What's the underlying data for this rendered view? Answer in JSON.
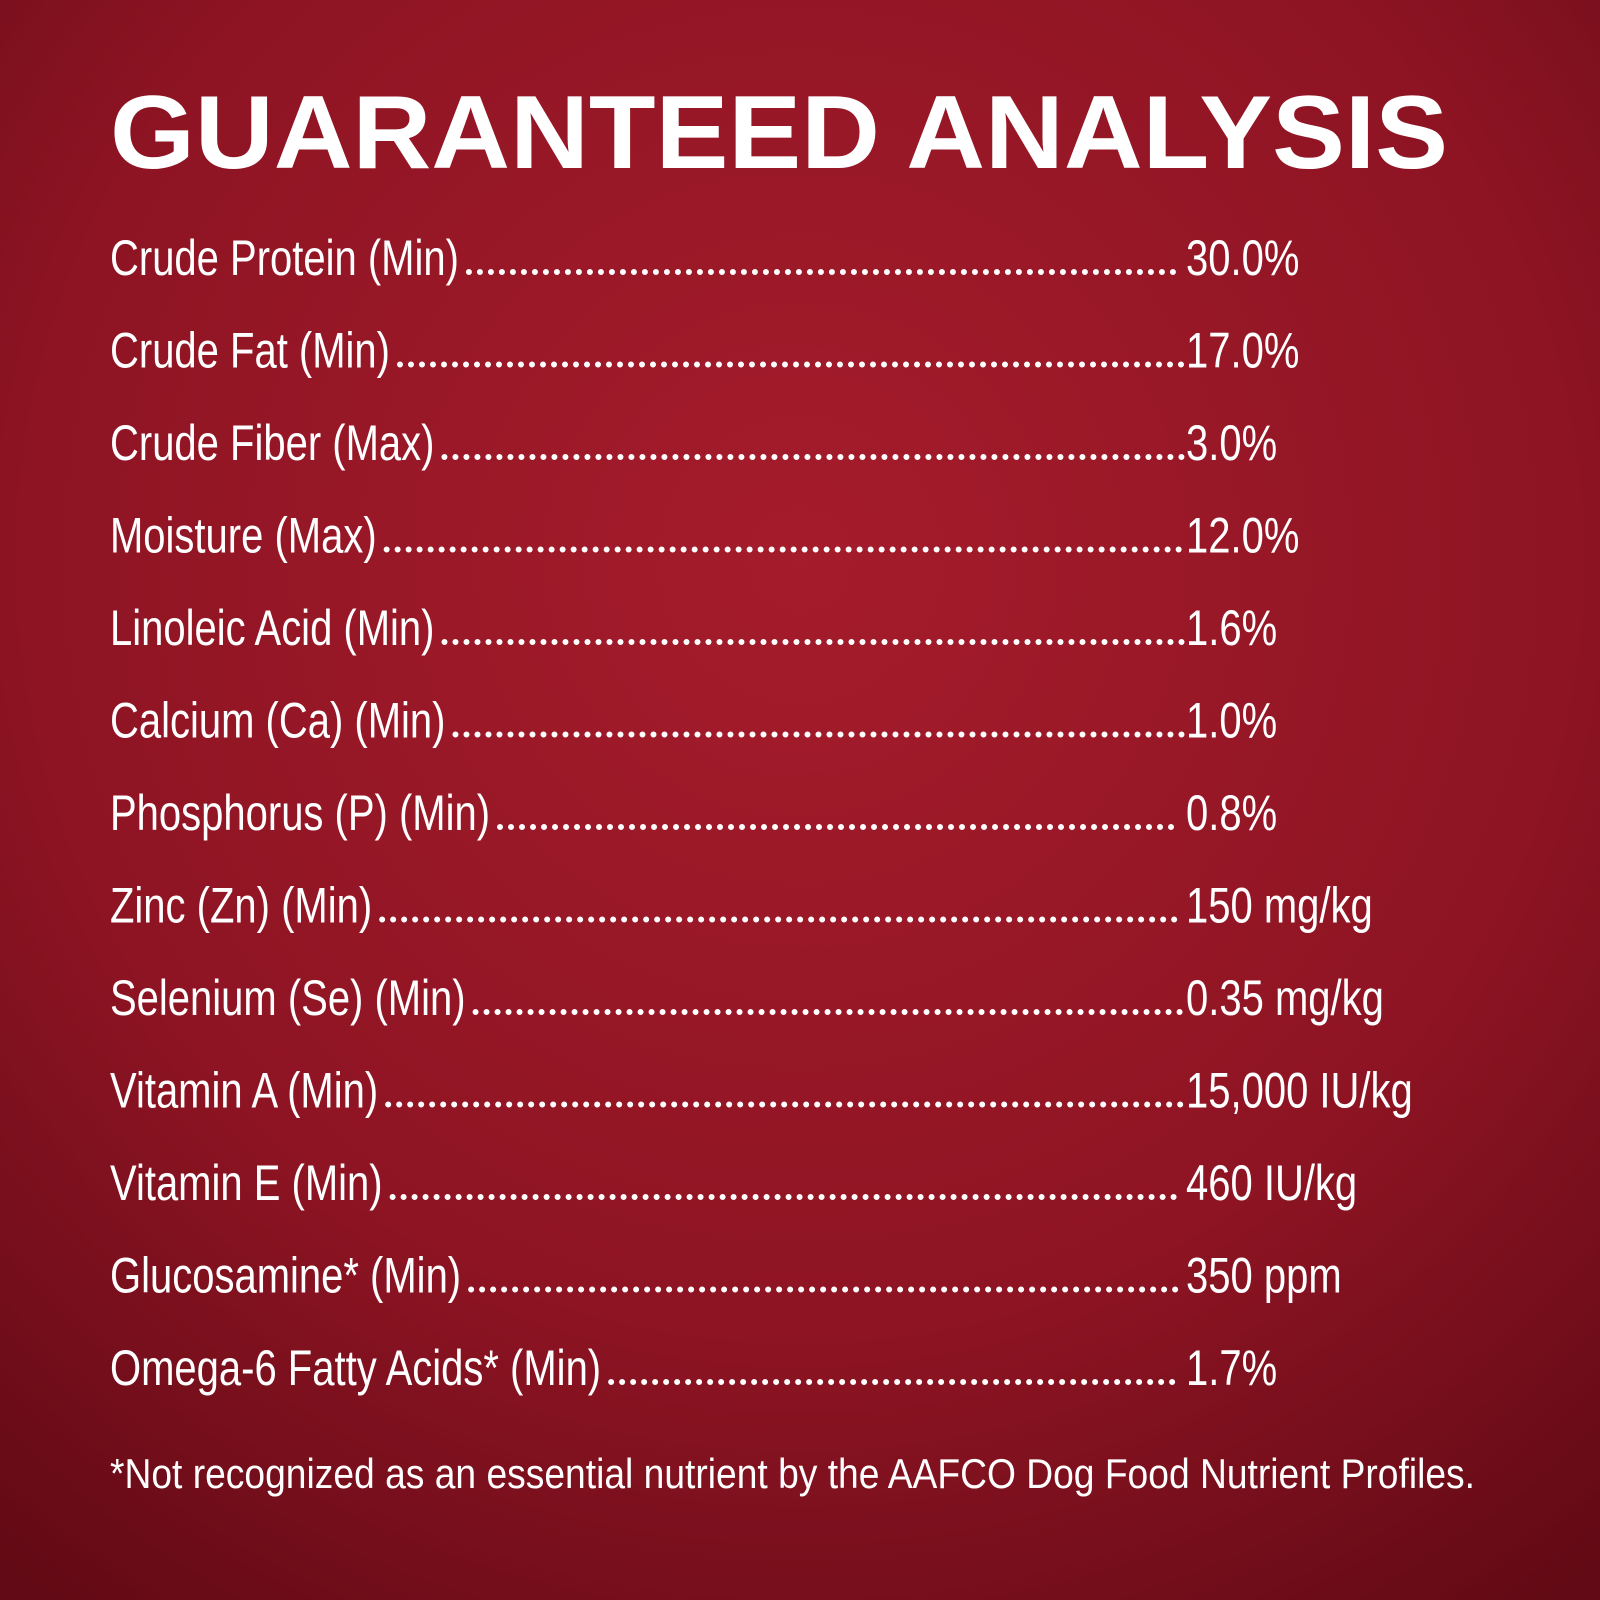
{
  "header": {
    "title": "GUARANTEED ANALYSIS"
  },
  "table": {
    "rows": [
      [
        "Crude Protein (Min)",
        "30.0%"
      ],
      [
        "Crude Fat (Min)",
        "17.0%"
      ],
      [
        "Crude Fiber (Max)",
        "3.0%"
      ],
      [
        "Moisture (Max)",
        "12.0%"
      ],
      [
        "Linoleic Acid (Min)",
        "1.6%"
      ],
      [
        "Calcium (Ca) (Min)",
        "1.0%"
      ],
      [
        "Phosphorus (P) (Min)",
        "0.8%"
      ],
      [
        "Zinc (Zn) (Min)",
        "150 mg/kg"
      ],
      [
        "Selenium (Se) (Min)",
        "0.35 mg/kg"
      ],
      [
        "Vitamin A (Min)",
        "15,000 IU/kg"
      ],
      [
        "Vitamin E (Min)",
        "460 IU/kg"
      ],
      [
        "Glucosamine* (Min)",
        "350 ppm"
      ],
      [
        "Omega-6 Fatty Acids* (Min)",
        "1.7%"
      ]
    ]
  },
  "footnote": "*Not recognized as an essential nutrient by the AAFCO Dog Food Nutrient Profiles."
}
